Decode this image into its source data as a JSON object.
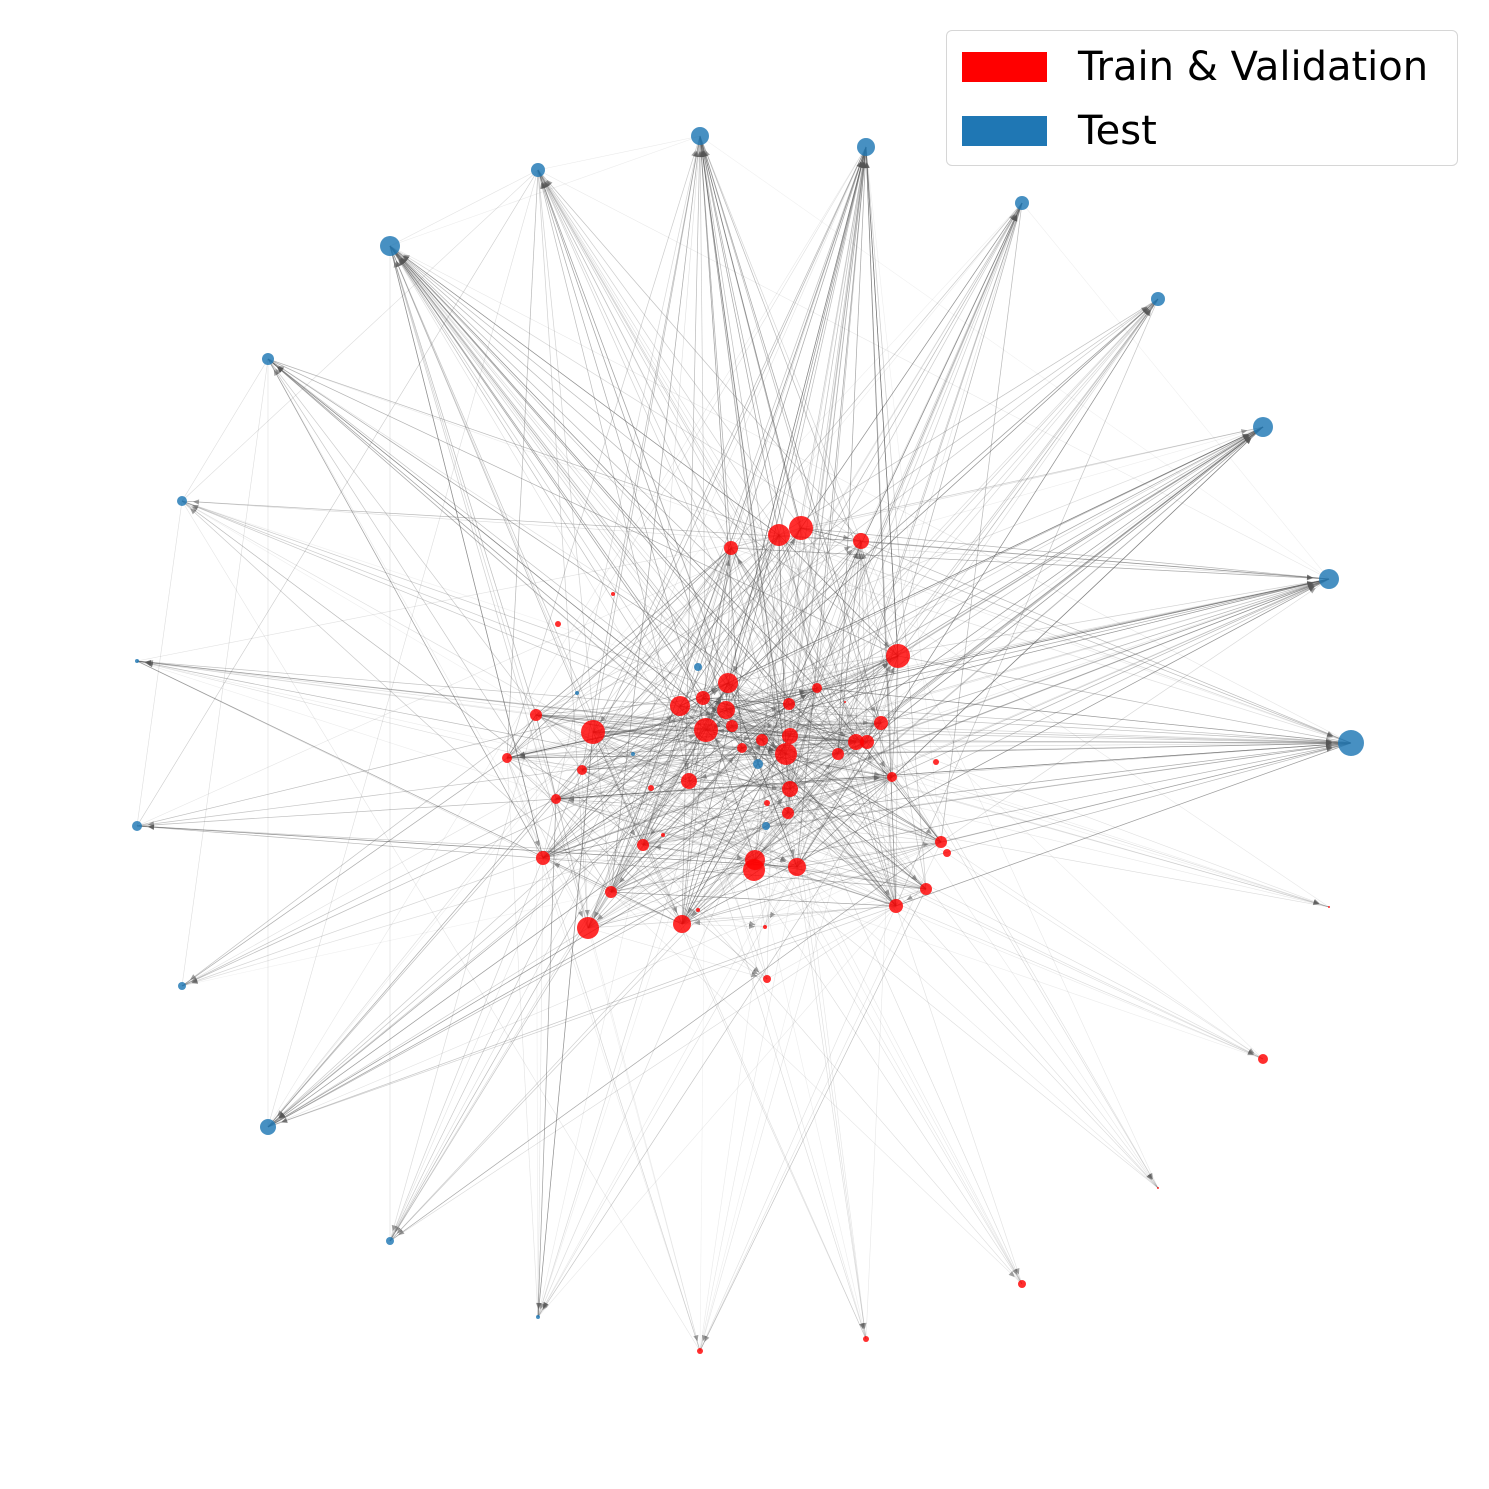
{
  "legend": {
    "items": [
      {
        "label": "Train & Validation",
        "color": "#ff0000"
      },
      {
        "label": "Test",
        "color": "#1f77b4"
      }
    ]
  },
  "colors": {
    "train": "#ff0000",
    "test": "#1f77b4",
    "edge": "#555555",
    "arrow": "#555555"
  },
  "diagram": {
    "type": "directed-graph"
  }
}
